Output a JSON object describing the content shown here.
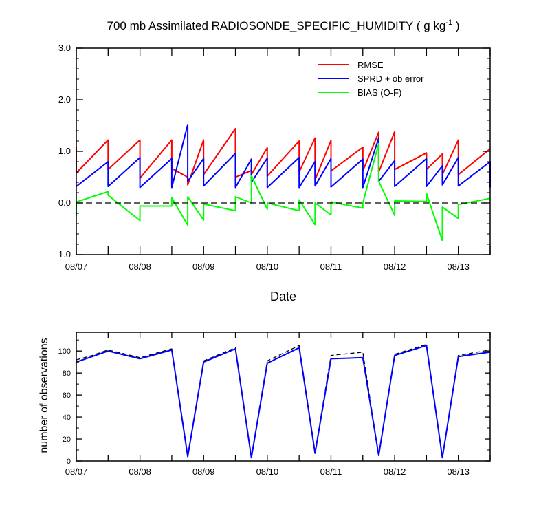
{
  "chart_data": [
    {
      "type": "line",
      "title_main": "700 mb Assimilated RADIOSONDE_SPECIFIC_HUMIDITY ( g kg",
      "title_sup": "-1",
      "title_end": " )",
      "xlabel": "Date",
      "ylabel": "",
      "xlim": [
        0,
        6.5
      ],
      "ylim": [
        -1.0,
        3.0
      ],
      "yticks": [
        -1.0,
        0.0,
        1.0,
        2.0,
        3.0
      ],
      "ytick_labels": [
        "-1.0",
        "0.0",
        "1.0",
        "2.0",
        "3.0"
      ],
      "xticks": [
        0,
        1,
        2,
        3,
        4,
        5,
        6
      ],
      "xtick_labels": [
        "08/07",
        "08/08",
        "08/09",
        "08/10",
        "08/11",
        "08/12",
        "08/13"
      ],
      "zero_line": true,
      "legend": [
        "RMSE",
        "SPRD + ob error",
        "BIAS (O-F)"
      ],
      "legend_position": "top-right",
      "series": [
        {
          "name": "RMSE",
          "color": "#ff0000",
          "points": [
            [
              0,
              1.08
            ],
            [
              0,
              0.58
            ],
            [
              0.5,
              1.22
            ],
            [
              0.5,
              0.65
            ],
            [
              1,
              1.22
            ],
            [
              1,
              0.48
            ],
            [
              1.5,
              1.22
            ],
            [
              1.5,
              0.67
            ],
            [
              1.75,
              0.5
            ],
            [
              1.75,
              0.35
            ],
            [
              2,
              1.22
            ],
            [
              2,
              0.55
            ],
            [
              2.5,
              1.44
            ],
            [
              2.5,
              0.5
            ],
            [
              2.75,
              0.63
            ],
            [
              2.75,
              0.55
            ],
            [
              3,
              1.07
            ],
            [
              3,
              0.52
            ],
            [
              3.5,
              1.2
            ],
            [
              3.5,
              0.6
            ],
            [
              3.75,
              1.26
            ],
            [
              3.75,
              0.45
            ],
            [
              4,
              1.21
            ],
            [
              4,
              0.62
            ],
            [
              4.5,
              1.08
            ],
            [
              4.5,
              0.62
            ],
            [
              4.75,
              1.37
            ],
            [
              4.75,
              0.6
            ],
            [
              5,
              1.38
            ],
            [
              5,
              0.65
            ],
            [
              5.5,
              0.97
            ],
            [
              5.5,
              0.65
            ],
            [
              5.75,
              0.95
            ],
            [
              5.75,
              0.55
            ],
            [
              6,
              1.22
            ],
            [
              6,
              0.55
            ],
            [
              6.5,
              1.05
            ]
          ]
        },
        {
          "name": "SPRD + ob error",
          "color": "#0000ff",
          "points": [
            [
              0,
              0.32
            ],
            [
              0.5,
              0.8
            ],
            [
              0.5,
              0.32
            ],
            [
              1,
              0.88
            ],
            [
              1,
              0.3
            ],
            [
              1.5,
              0.86
            ],
            [
              1.5,
              0.3
            ],
            [
              1.75,
              1.52
            ],
            [
              1.75,
              0.42
            ],
            [
              2,
              0.86
            ],
            [
              2,
              0.33
            ],
            [
              2.5,
              0.96
            ],
            [
              2.5,
              0.3
            ],
            [
              2.75,
              0.85
            ],
            [
              2.75,
              0.4
            ],
            [
              3,
              0.87
            ],
            [
              3,
              0.3
            ],
            [
              3.5,
              0.88
            ],
            [
              3.5,
              0.3
            ],
            [
              3.75,
              0.8
            ],
            [
              3.75,
              0.33
            ],
            [
              4,
              0.86
            ],
            [
              4,
              0.31
            ],
            [
              4.5,
              0.85
            ],
            [
              4.5,
              0.3
            ],
            [
              4.75,
              1.26
            ],
            [
              4.75,
              0.42
            ],
            [
              5,
              0.82
            ],
            [
              5,
              0.32
            ],
            [
              5.5,
              0.86
            ],
            [
              5.5,
              0.32
            ],
            [
              5.75,
              0.72
            ],
            [
              5.75,
              0.35
            ],
            [
              6,
              0.88
            ],
            [
              6,
              0.33
            ],
            [
              6.5,
              0.8
            ],
            [
              6.5,
              0.3
            ]
          ]
        },
        {
          "name": "BIAS (O-F)",
          "color": "#00ff00",
          "points": [
            [
              0,
              -0.25
            ],
            [
              0,
              0.02
            ],
            [
              0.5,
              0.22
            ],
            [
              0.5,
              0.15
            ],
            [
              1,
              -0.34
            ],
            [
              1,
              -0.06
            ],
            [
              1.5,
              -0.06
            ],
            [
              1.5,
              0.1
            ],
            [
              1.75,
              -0.43
            ],
            [
              1.75,
              0.12
            ],
            [
              2,
              -0.33
            ],
            [
              2,
              -0.02
            ],
            [
              2.5,
              -0.15
            ],
            [
              2.5,
              0.12
            ],
            [
              2.75,
              0.0
            ],
            [
              2.75,
              0.53
            ],
            [
              3,
              -0.12
            ],
            [
              3,
              0.0
            ],
            [
              3.5,
              -0.15
            ],
            [
              3.5,
              0.06
            ],
            [
              3.75,
              -0.42
            ],
            [
              3.75,
              0.0
            ],
            [
              4,
              -0.23
            ],
            [
              4,
              0.02
            ],
            [
              4.5,
              -0.1
            ],
            [
              4.5,
              0.0
            ],
            [
              4.75,
              1.15
            ],
            [
              4.75,
              0.42
            ],
            [
              5,
              -0.24
            ],
            [
              5,
              0.04
            ],
            [
              5.5,
              0.03
            ],
            [
              5.5,
              0.18
            ],
            [
              5.75,
              -0.73
            ],
            [
              5.75,
              -0.08
            ],
            [
              6,
              -0.3
            ],
            [
              6,
              -0.03
            ],
            [
              6.5,
              0.09
            ]
          ]
        }
      ]
    },
    {
      "type": "line",
      "title": "",
      "xlabel": "",
      "ylabel": "number of observations",
      "xlim": [
        0,
        6.5
      ],
      "ylim": [
        0,
        117
      ],
      "yticks": [
        0,
        20,
        40,
        60,
        80,
        100
      ],
      "ytick_labels": [
        "0",
        "20",
        "40",
        "60",
        "80",
        "100"
      ],
      "xticks": [
        0,
        1,
        2,
        3,
        4,
        5,
        6
      ],
      "xtick_labels": [
        "08/07",
        "08/08",
        "08/09",
        "08/10",
        "08/11",
        "08/12",
        "08/13"
      ],
      "series": [
        {
          "name": "possible observations",
          "color": "#000000",
          "dashed": true,
          "points": [
            [
              0,
              92
            ],
            [
              0.25,
              96
            ],
            [
              0.5,
              101
            ],
            [
              1,
              94
            ],
            [
              1.5,
              102
            ],
            [
              1.75,
              5
            ],
            [
              2,
              91
            ],
            [
              2.5,
              103
            ],
            [
              2.75,
              4
            ],
            [
              3,
              91
            ],
            [
              3.5,
              105
            ],
            [
              3.75,
              8
            ],
            [
              4,
              96
            ],
            [
              4.5,
              99
            ],
            [
              4.75,
              5
            ],
            [
              5,
              97
            ],
            [
              5.5,
              106
            ],
            [
              5.75,
              3
            ],
            [
              6,
              96
            ],
            [
              6.5,
              101
            ]
          ]
        },
        {
          "name": "assimilated observations",
          "color": "#0000ff",
          "dashed": false,
          "points": [
            [
              0,
              90
            ],
            [
              0.25,
              95
            ],
            [
              0.5,
              100
            ],
            [
              1,
              93
            ],
            [
              1.5,
              101
            ],
            [
              1.75,
              4
            ],
            [
              2,
              90
            ],
            [
              2.5,
              102
            ],
            [
              2.75,
              3
            ],
            [
              3,
              89
            ],
            [
              3.5,
              103
            ],
            [
              3.75,
              7
            ],
            [
              4,
              93
            ],
            [
              4.5,
              94
            ],
            [
              4.75,
              5
            ],
            [
              5,
              96
            ],
            [
              5.5,
              105
            ],
            [
              5.75,
              3
            ],
            [
              6,
              95
            ],
            [
              6.5,
              99
            ]
          ]
        }
      ]
    }
  ]
}
